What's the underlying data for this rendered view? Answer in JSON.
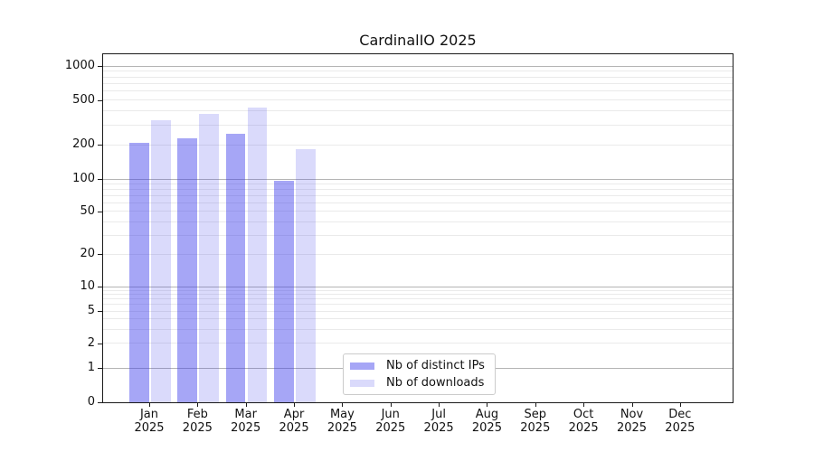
{
  "title": "CardinalIO 2025",
  "colors": {
    "bar_distinct_ips": "rgba(57,57,235,0.45)",
    "bar_downloads": "rgba(57,57,235,0.19)",
    "grid_major": "#b4b4b4",
    "grid_minor": "#eaeaea",
    "axis_line": "#1a1a1a",
    "text": "#111111",
    "legend_border": "#cbcbcb",
    "background": "#ffffff"
  },
  "legend": {
    "items": [
      {
        "label": "Nb of distinct IPs"
      },
      {
        "label": "Nb of downloads"
      }
    ]
  },
  "chart_data": {
    "type": "bar",
    "title": "CardinalIO 2025",
    "yscale": "symlog",
    "grid": true,
    "legend_position": "lower center",
    "ylim": [
      0,
      1300
    ],
    "y_ticks_labeled": [
      0,
      1,
      2,
      5,
      10,
      20,
      50,
      100,
      200,
      500,
      1000
    ],
    "y_gridlines_major": [
      1,
      10,
      100,
      1000
    ],
    "x_categories": [
      "Jan",
      "Feb",
      "Mar",
      "Apr",
      "May",
      "Jun",
      "Jul",
      "Aug",
      "Sep",
      "Oct",
      "Nov",
      "Dec"
    ],
    "x_year": "2025",
    "series": [
      {
        "name": "Nb of distinct IPs",
        "color_key": "bar_distinct_ips",
        "values": [
          210,
          230,
          250,
          97,
          null,
          null,
          null,
          null,
          null,
          null,
          null,
          null
        ]
      },
      {
        "name": "Nb of downloads",
        "color_key": "bar_downloads",
        "values": [
          330,
          375,
          430,
          185,
          null,
          null,
          null,
          null,
          null,
          null,
          null,
          null
        ]
      }
    ]
  }
}
